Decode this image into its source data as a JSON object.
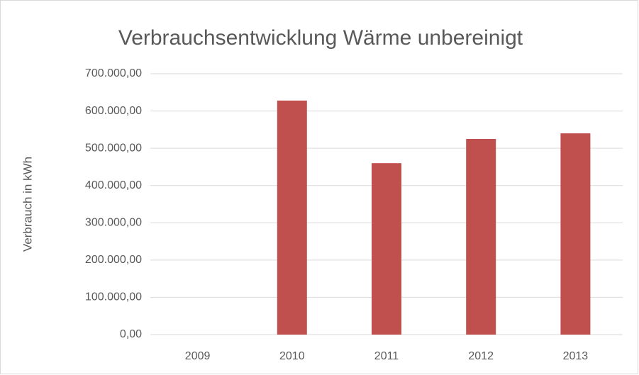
{
  "chart_data": {
    "type": "bar",
    "title": "Verbrauchsentwicklung Wärme unbereinigt",
    "y_label": "Verbrauch in kWh",
    "categories": [
      "2009",
      "2010",
      "2011",
      "2012",
      "2013"
    ],
    "values": [
      0,
      628000,
      460000,
      525000,
      540000
    ],
    "color": "#c0504d",
    "ylim": [
      0,
      700000
    ],
    "yticks": [
      {
        "value": 0,
        "label": "0,00"
      },
      {
        "value": 100000,
        "label": "100.000,00"
      },
      {
        "value": 200000,
        "label": "200.000,00"
      },
      {
        "value": 300000,
        "label": "300.000,00"
      },
      {
        "value": 400000,
        "label": "400.000,00"
      },
      {
        "value": 500000,
        "label": "500.000,00"
      },
      {
        "value": 600000,
        "label": "600.000,00"
      },
      {
        "value": 700000,
        "label": "700.000,00"
      }
    ],
    "grid": true
  }
}
